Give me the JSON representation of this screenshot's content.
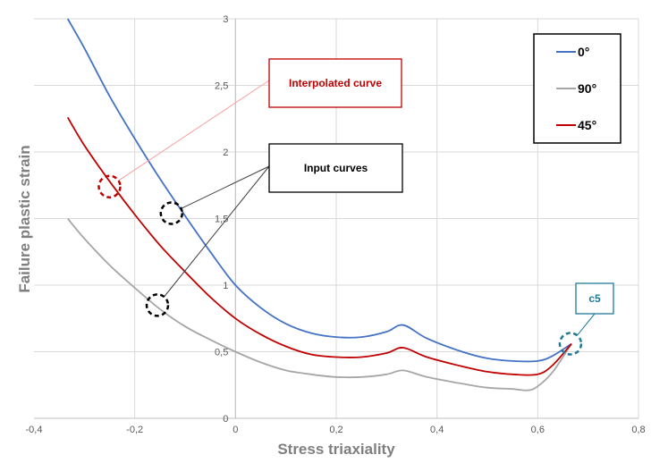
{
  "chart_data": {
    "type": "line",
    "title": "",
    "xlabel": "Stress triaxiality",
    "ylabel": "Failure plastic strain",
    "xlim": [
      -0.4,
      0.8
    ],
    "ylim": [
      0,
      3
    ],
    "grid": true,
    "x_ticks": [
      "-0,4",
      "-0,2",
      "0",
      "0,2",
      "0,4",
      "0,6",
      "0,8"
    ],
    "y_ticks": [
      "0",
      "0,5",
      "1",
      "1,5",
      "2",
      "2,5",
      "3"
    ],
    "legend_position": "top-right",
    "series": [
      {
        "name": "0°",
        "color": "#4472c4",
        "points": [
          [
            -0.333,
            3.0
          ],
          [
            -0.3,
            2.78
          ],
          [
            -0.25,
            2.42
          ],
          [
            -0.2,
            2.1
          ],
          [
            -0.15,
            1.8
          ],
          [
            -0.1,
            1.52
          ],
          [
            -0.05,
            1.25
          ],
          [
            0,
            1.0
          ],
          [
            0.05,
            0.83
          ],
          [
            0.1,
            0.71
          ],
          [
            0.15,
            0.64
          ],
          [
            0.2,
            0.61
          ],
          [
            0.25,
            0.61
          ],
          [
            0.3,
            0.65
          ],
          [
            0.333,
            0.7
          ],
          [
            0.38,
            0.6
          ],
          [
            0.45,
            0.5
          ],
          [
            0.5,
            0.45
          ],
          [
            0.55,
            0.43
          ],
          [
            0.6,
            0.43
          ],
          [
            0.63,
            0.47
          ],
          [
            0.667,
            0.56
          ]
        ]
      },
      {
        "name": "90°",
        "color": "#a6a6a6",
        "points": [
          [
            -0.333,
            1.5
          ],
          [
            -0.3,
            1.35
          ],
          [
            -0.25,
            1.15
          ],
          [
            -0.2,
            0.98
          ],
          [
            -0.15,
            0.82
          ],
          [
            -0.1,
            0.69
          ],
          [
            -0.05,
            0.59
          ],
          [
            0,
            0.5
          ],
          [
            0.05,
            0.42
          ],
          [
            0.1,
            0.36
          ],
          [
            0.15,
            0.33
          ],
          [
            0.2,
            0.31
          ],
          [
            0.25,
            0.31
          ],
          [
            0.3,
            0.33
          ],
          [
            0.333,
            0.36
          ],
          [
            0.38,
            0.31
          ],
          [
            0.45,
            0.26
          ],
          [
            0.5,
            0.23
          ],
          [
            0.55,
            0.22
          ],
          [
            0.58,
            0.21
          ],
          [
            0.6,
            0.24
          ],
          [
            0.63,
            0.35
          ],
          [
            0.667,
            0.56
          ]
        ]
      },
      {
        "name": "45°",
        "color": "#c00000",
        "points": [
          [
            -0.333,
            2.26
          ],
          [
            -0.3,
            2.05
          ],
          [
            -0.25,
            1.78
          ],
          [
            -0.2,
            1.53
          ],
          [
            -0.15,
            1.3
          ],
          [
            -0.1,
            1.1
          ],
          [
            -0.05,
            0.91
          ],
          [
            0,
            0.75
          ],
          [
            0.05,
            0.63
          ],
          [
            0.1,
            0.54
          ],
          [
            0.15,
            0.48
          ],
          [
            0.2,
            0.46
          ],
          [
            0.25,
            0.46
          ],
          [
            0.3,
            0.49
          ],
          [
            0.333,
            0.53
          ],
          [
            0.38,
            0.46
          ],
          [
            0.45,
            0.39
          ],
          [
            0.5,
            0.35
          ],
          [
            0.55,
            0.33
          ],
          [
            0.6,
            0.33
          ],
          [
            0.63,
            0.4
          ],
          [
            0.667,
            0.56
          ]
        ]
      }
    ],
    "annotations": [
      {
        "id": "interpolated",
        "label": "Interpolated curve",
        "text_color": "#c00000",
        "border_color": "#c00000",
        "line_color": "#f4a3a3",
        "circle_color": "#c00000",
        "targets": [
          [
            -0.25,
            1.74
          ]
        ]
      },
      {
        "id": "input",
        "label": "Input curves",
        "text_color": "#000000",
        "border_color": "#000000",
        "line_color": "#404040",
        "circle_color": "#000000",
        "targets": [
          [
            -0.127,
            1.54
          ],
          [
            -0.155,
            0.85
          ]
        ]
      },
      {
        "id": "c5",
        "label": "c5",
        "text_color": "#1f7a99",
        "border_color": "#1f7a99",
        "line_color": "#1f7a99",
        "circle_color": "#1f7a99",
        "targets": [
          [
            0.665,
            0.56
          ]
        ]
      }
    ]
  }
}
